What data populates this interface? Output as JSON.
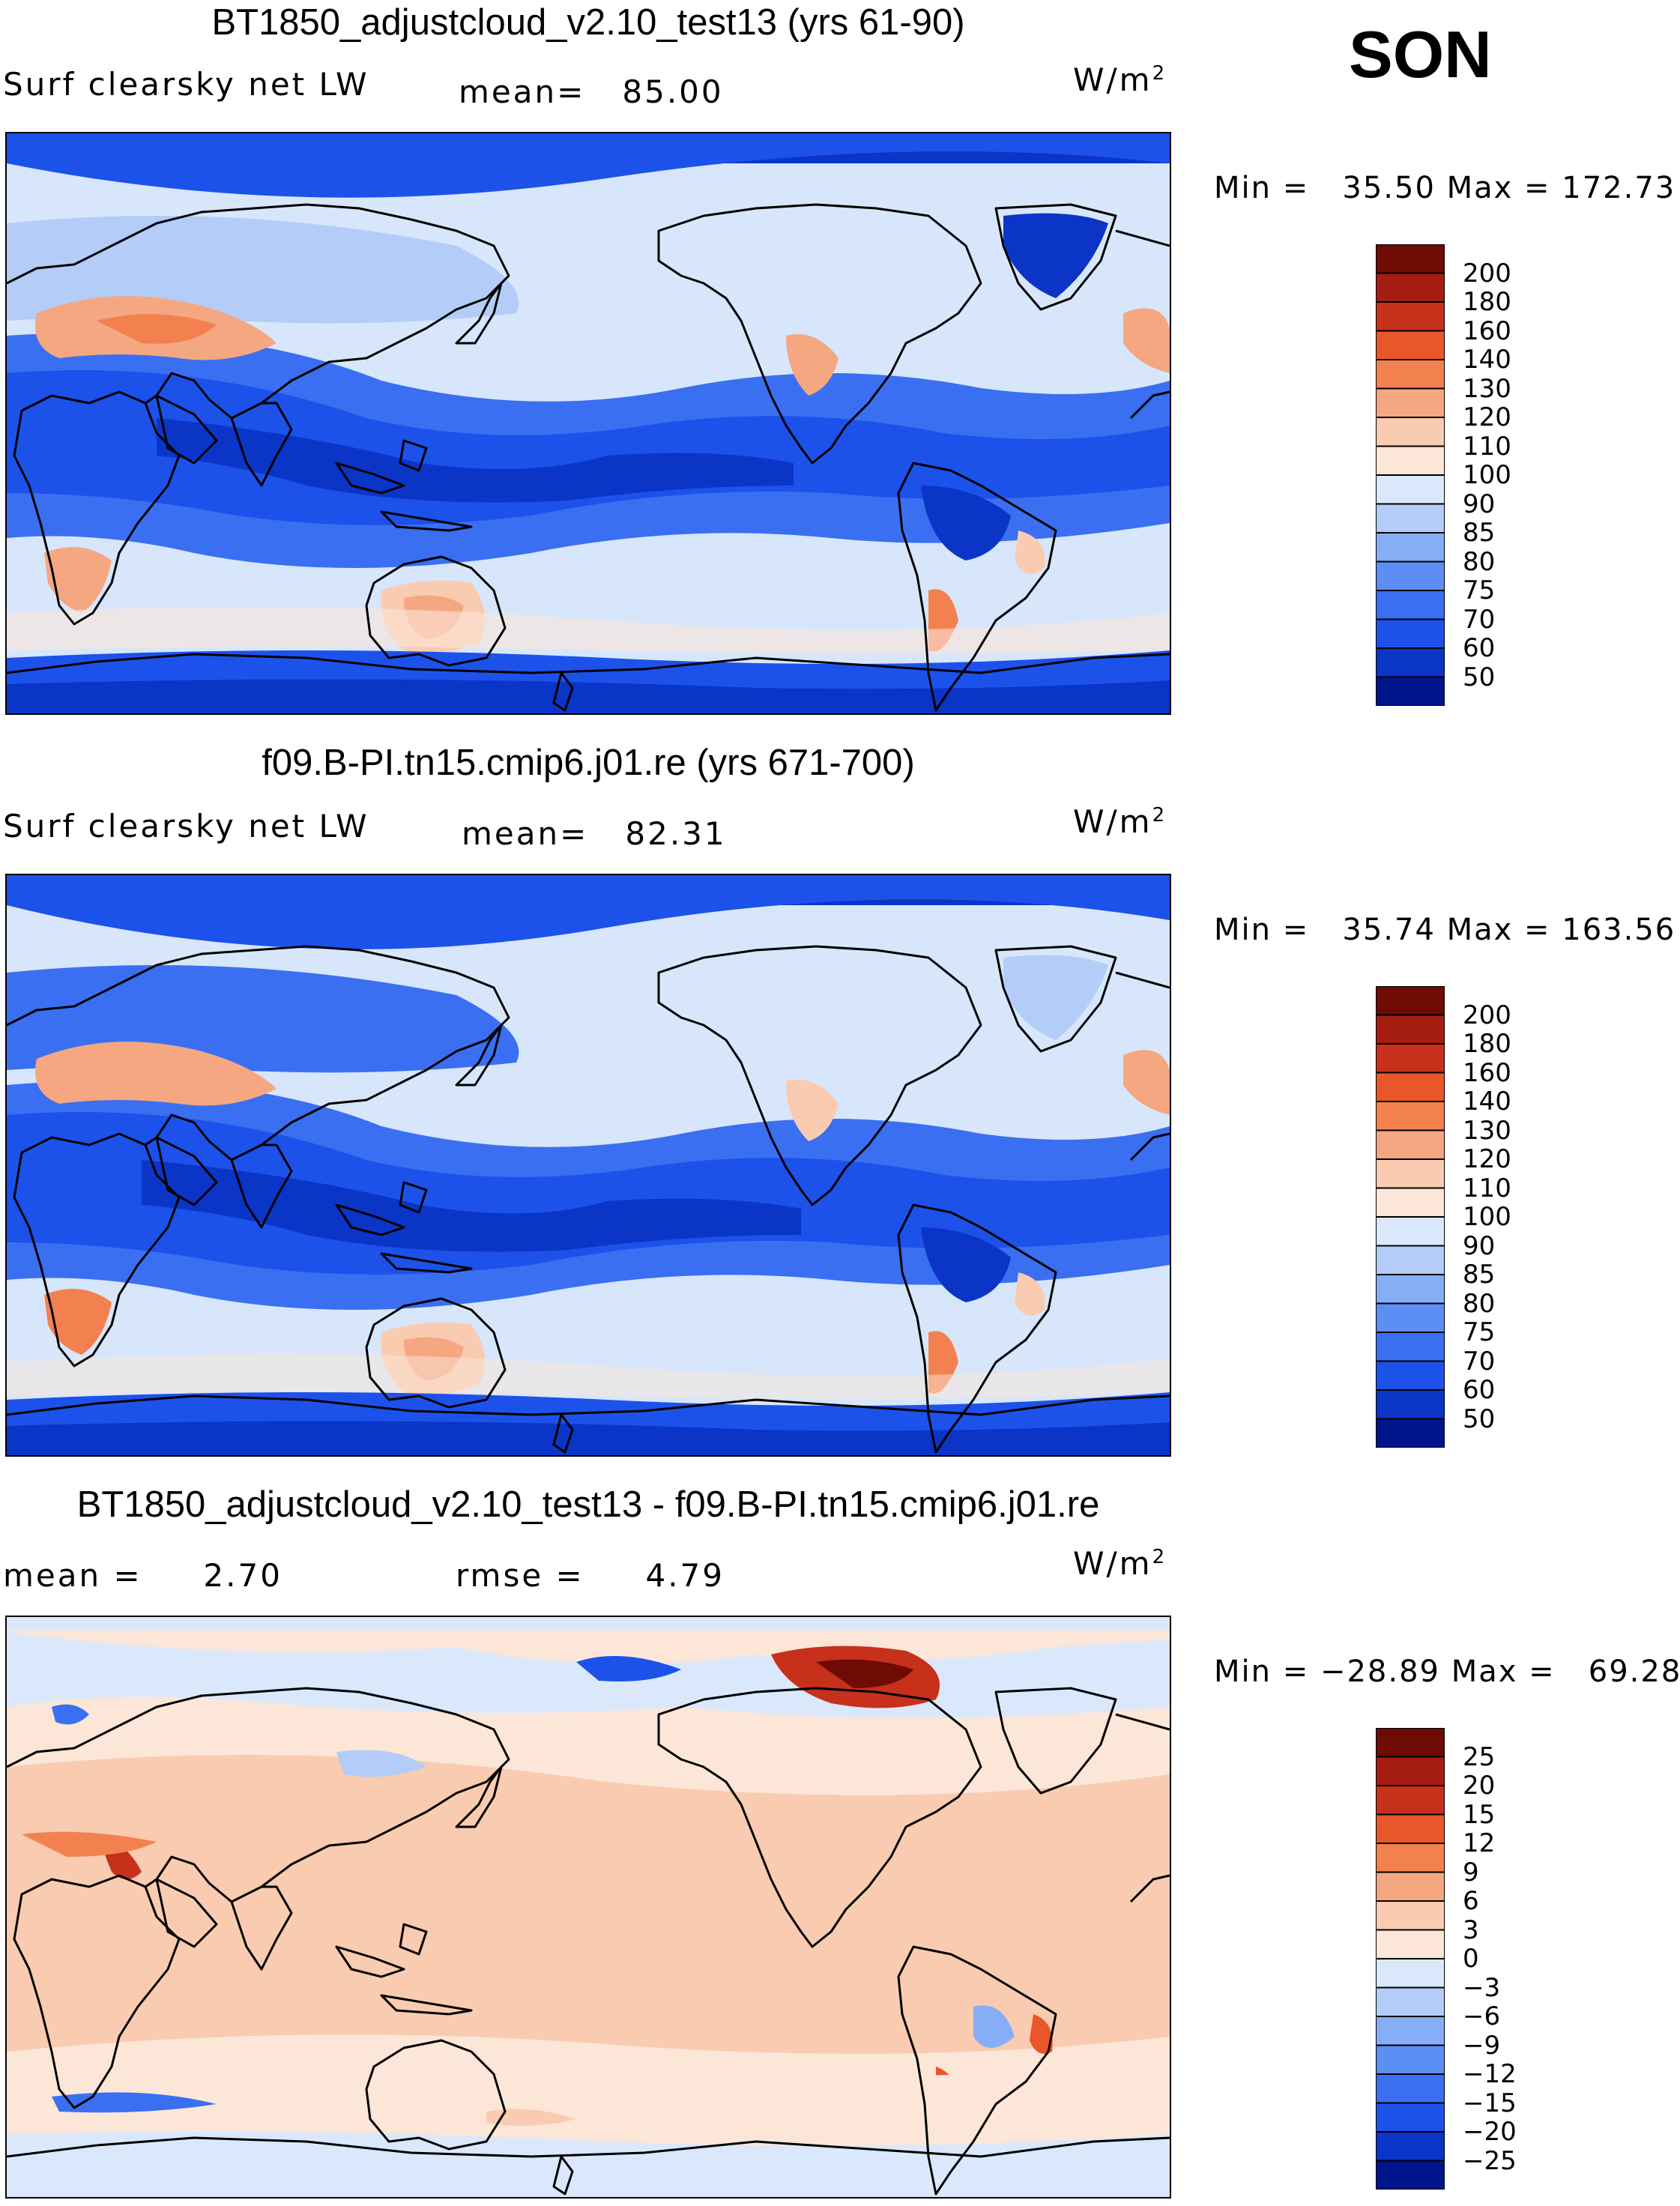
{
  "season": "SON",
  "units_base": "W/m",
  "units_exp": "2",
  "panels": [
    {
      "title": "BT1850_adjustcloud_v2.10_test13 (yrs 61-90)",
      "variable": "Surf clearsky net LW",
      "mean_label": "mean=",
      "mean_value": "85.00",
      "min_label": "Min =",
      "min_value": "35.50",
      "max_label": "Max =",
      "max_value": "172.73"
    },
    {
      "title": "f09.B-PI.tn15.cmip6.j01.re (yrs 671-700)",
      "variable": "Surf clearsky net LW",
      "mean_label": "mean=",
      "mean_value": "82.31",
      "min_label": "Min =",
      "min_value": "35.74",
      "max_label": "Max =",
      "max_value": "163.56"
    },
    {
      "title": "BT1850_adjustcloud_v2.10_test13 - f09.B-PI.tn15.cmip6.j01.re",
      "mean_label": "mean =",
      "mean_value": "2.70",
      "rmse_label": "rmse =",
      "rmse_value": "4.79",
      "min_label": "Min =",
      "min_value": "−28.89",
      "max_label": "Max =",
      "max_value": "69.28"
    }
  ],
  "chart_data": [
    {
      "type": "heatmap",
      "title": "BT1850_adjustcloud_v2.10_test13 (yrs 61-90)",
      "variable": "Surf clearsky net LW",
      "units": "W/m2",
      "mean": 85.0,
      "min": 35.5,
      "max": 172.73,
      "colorbar_levels": [
        50,
        60,
        70,
        75,
        80,
        85,
        90,
        100,
        110,
        120,
        130,
        140,
        160,
        180,
        200
      ],
      "colorbar_colors": [
        "#00158c",
        "#0a35c7",
        "#1c52ea",
        "#3a6ff2",
        "#5d8ef5",
        "#86aef7",
        "#b3cdf8",
        "#dbe8fb",
        "#fbe6d8",
        "#f9cbb0",
        "#f5a782",
        "#f3814f",
        "#e9562a",
        "#c7301a",
        "#a51d10",
        "#6e0b04"
      ]
    },
    {
      "type": "heatmap",
      "title": "f09.B-PI.tn15.cmip6.j01.re (yrs 671-700)",
      "variable": "Surf clearsky net LW",
      "units": "W/m2",
      "mean": 82.31,
      "min": 35.74,
      "max": 163.56,
      "colorbar_levels": [
        50,
        60,
        70,
        75,
        80,
        85,
        90,
        100,
        110,
        120,
        130,
        140,
        160,
        180,
        200
      ],
      "colorbar_colors": [
        "#00158c",
        "#0a35c7",
        "#1c52ea",
        "#3a6ff2",
        "#5d8ef5",
        "#86aef7",
        "#b3cdf8",
        "#dbe8fb",
        "#fbe6d8",
        "#f9cbb0",
        "#f5a782",
        "#f3814f",
        "#e9562a",
        "#c7301a",
        "#a51d10",
        "#6e0b04"
      ]
    },
    {
      "type": "heatmap",
      "title": "BT1850_adjustcloud_v2.10_test13 - f09.B-PI.tn15.cmip6.j01.re",
      "units": "W/m2",
      "mean": 2.7,
      "rmse": 4.79,
      "min": -28.89,
      "max": 69.28,
      "colorbar_levels": [
        -25,
        -20,
        -15,
        -12,
        -9,
        -6,
        -3,
        0,
        3,
        6,
        9,
        12,
        15,
        20,
        25
      ],
      "colorbar_level_labels": [
        "−25",
        "−20",
        "−15",
        "−12",
        "−9",
        "−6",
        "−3",
        "0",
        "3",
        "6",
        "9",
        "12",
        "15",
        "20",
        "25"
      ],
      "colorbar_colors": [
        "#00158c",
        "#0a35c7",
        "#1c52ea",
        "#3a6ff2",
        "#5d8ef5",
        "#86aef7",
        "#b3cdf8",
        "#dbe8fb",
        "#fbe6d8",
        "#f9cbb0",
        "#f5a782",
        "#f3814f",
        "#e9562a",
        "#c7301a",
        "#a51d10",
        "#6e0b04"
      ]
    }
  ]
}
